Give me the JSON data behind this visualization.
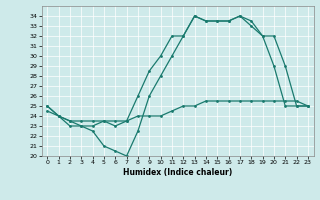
{
  "xlabel": "Humidex (Indice chaleur)",
  "xlim": [
    -0.5,
    23.5
  ],
  "ylim": [
    20,
    35
  ],
  "yticks": [
    20,
    21,
    22,
    23,
    24,
    25,
    26,
    27,
    28,
    29,
    30,
    31,
    32,
    33,
    34
  ],
  "xticks": [
    0,
    1,
    2,
    3,
    4,
    5,
    6,
    7,
    8,
    9,
    10,
    11,
    12,
    13,
    14,
    15,
    16,
    17,
    18,
    19,
    20,
    21,
    22,
    23
  ],
  "bg_color": "#ceeaea",
  "line_color": "#1a7a6e",
  "curve1_x": [
    0,
    1,
    2,
    3,
    4,
    5,
    6,
    7,
    8,
    9,
    10,
    11,
    12,
    13,
    14,
    15,
    16,
    17,
    18,
    19,
    20,
    21,
    22,
    23
  ],
  "curve1_y": [
    25,
    24,
    23,
    23,
    22.5,
    21,
    20.5,
    20,
    22.5,
    26,
    28,
    30,
    32,
    34,
    33.5,
    33.5,
    33.5,
    34,
    33,
    32,
    29,
    25,
    25,
    25
  ],
  "curve2_x": [
    0,
    1,
    2,
    3,
    4,
    5,
    6,
    7,
    8,
    9,
    10,
    11,
    12,
    13,
    14,
    15,
    16,
    17,
    18,
    19,
    20,
    21,
    22,
    23
  ],
  "curve2_y": [
    24.5,
    24,
    23.5,
    23.5,
    23.5,
    23.5,
    23.5,
    23.5,
    24,
    24,
    24,
    24.5,
    25,
    25,
    25.5,
    25.5,
    25.5,
    25.5,
    25.5,
    25.5,
    25.5,
    25.5,
    25.5,
    25
  ],
  "curve3_x": [
    0,
    1,
    2,
    3,
    4,
    5,
    6,
    7,
    8,
    9,
    10,
    11,
    12,
    13,
    14,
    15,
    16,
    17,
    18,
    19,
    20,
    21,
    22,
    23
  ],
  "curve3_y": [
    25,
    24,
    23.5,
    23,
    23,
    23.5,
    23,
    23.5,
    26,
    28.5,
    30,
    32,
    32,
    34,
    33.5,
    33.5,
    33.5,
    34,
    33.5,
    32,
    32,
    29,
    25,
    25
  ]
}
